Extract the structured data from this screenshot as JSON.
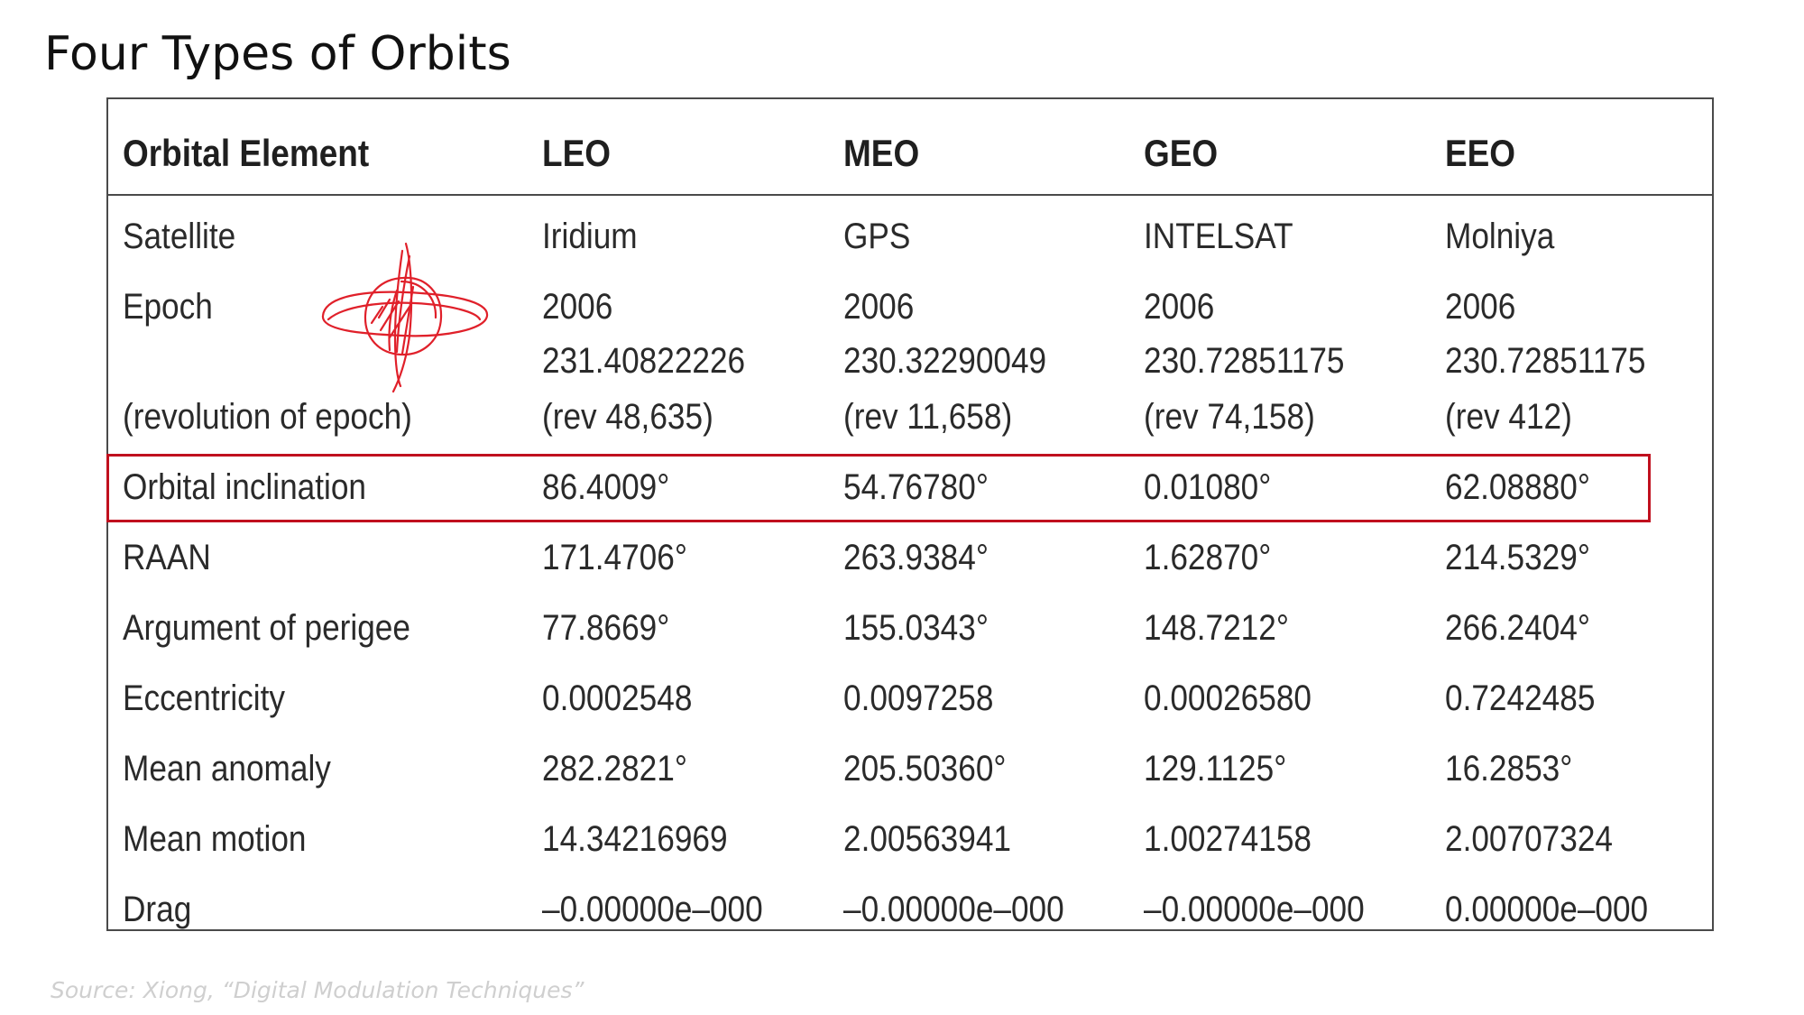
{
  "title": "Four Types of Orbits",
  "source": "Source: Xiong, “Digital Modulation Techniques”",
  "table": {
    "headers": [
      "Orbital Element",
      "LEO",
      "MEO",
      "GEO",
      "EEO"
    ],
    "rows": [
      {
        "label": "Satellite",
        "values": [
          "Iridium",
          "GPS",
          "INTELSAT",
          "Molniya"
        ]
      },
      {
        "label": "Epoch",
        "values": [
          "2006",
          "2006",
          "2006",
          "2006"
        ]
      },
      {
        "label": "",
        "values": [
          "231.40822226",
          "230.32290049",
          "230.72851175",
          "230.72851175"
        ]
      },
      {
        "label": "(revolution of epoch)",
        "values": [
          "(rev 48,635)",
          "(rev 11,658)",
          "(rev 74,158)",
          "(rev 412)"
        ]
      },
      {
        "label": "Orbital inclination",
        "values": [
          "86.4009°",
          "54.76780°",
          "0.01080°",
          "62.08880°"
        ]
      },
      {
        "label": "RAAN",
        "values": [
          "171.4706°",
          "263.9384°",
          "1.62870°",
          "214.5329°"
        ]
      },
      {
        "label": "Argument of perigee",
        "values": [
          "77.8669°",
          "155.0343°",
          "148.7212°",
          "266.2404°"
        ]
      },
      {
        "label": "Eccentricity",
        "values": [
          "0.0002548",
          "0.0097258",
          "0.00026580",
          "0.7242485"
        ]
      },
      {
        "label": "Mean anomaly",
        "values": [
          "282.2821°",
          "205.50360°",
          "129.1125°",
          "16.2853°"
        ]
      },
      {
        "label": "Mean motion",
        "values": [
          "14.34216969",
          "2.00563941",
          "1.00274158",
          "2.00707324"
        ]
      },
      {
        "label": "Drag",
        "values": [
          "–0.00000e–000",
          "–0.00000e–000",
          "–0.00000e–000",
          "0.00000e–000"
        ]
      }
    ]
  },
  "highlight": {
    "row": "Orbital inclination",
    "color": "#c0101e"
  },
  "annotation_color": "#e0202a"
}
